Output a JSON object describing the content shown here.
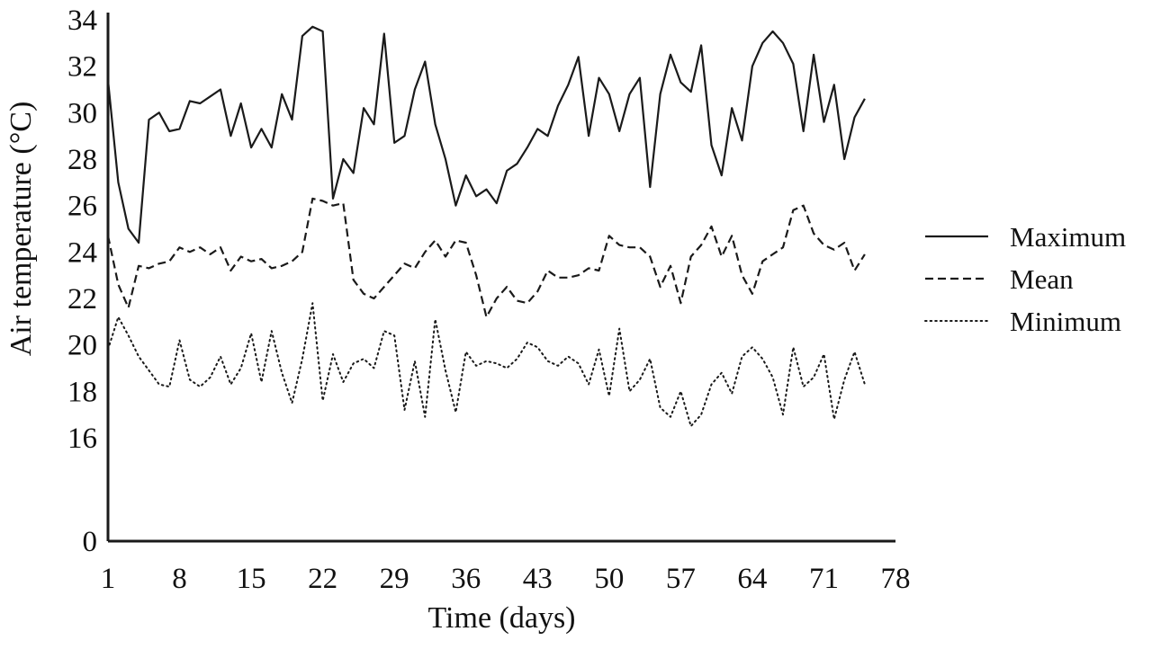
{
  "chart_data": {
    "type": "line",
    "title": "",
    "xlabel": "Time (days)",
    "ylabel": "Air temperature (°C)",
    "x_ticks": [
      1,
      8,
      15,
      22,
      29,
      36,
      43,
      50,
      57,
      64,
      71,
      78
    ],
    "y_ticks": [
      34,
      32,
      30,
      28,
      26,
      24,
      22,
      20,
      18,
      16
    ],
    "y_axis_break_label": "0",
    "x_range": [
      1,
      75
    ],
    "ylim": [
      16,
      34
    ],
    "grid": false,
    "background": "#ffffff",
    "line_color": "#1a1a1a",
    "axis_color": "#1a1a1a",
    "legend": {
      "position": "right"
    },
    "series": [
      {
        "name": "Maximum",
        "line_style": "solid",
        "values": [
          31.4,
          27.0,
          25.0,
          24.4,
          29.7,
          30.0,
          29.2,
          29.3,
          30.5,
          30.4,
          30.7,
          31.0,
          29.0,
          30.4,
          28.5,
          29.3,
          28.5,
          30.8,
          29.7,
          33.3,
          33.7,
          33.5,
          26.3,
          28.0,
          27.4,
          30.2,
          29.5,
          33.4,
          28.7,
          29.0,
          31.0,
          32.2,
          29.5,
          28.0,
          26.0,
          27.3,
          26.4,
          26.7,
          26.1,
          27.5,
          27.8,
          28.5,
          29.3,
          29.0,
          30.3,
          31.2,
          32.4,
          29.0,
          31.5,
          30.8,
          29.2,
          30.8,
          31.5,
          26.8,
          30.8,
          32.5,
          31.3,
          30.9,
          32.9,
          28.6,
          27.3,
          30.2,
          28.8,
          32.0,
          33.0,
          33.5,
          33.0,
          32.1,
          29.2,
          32.5,
          29.6,
          31.2,
          28.0,
          29.8,
          30.6
        ]
      },
      {
        "name": "Mean",
        "line_style": "dashed",
        "values": [
          24.7,
          22.6,
          21.6,
          23.4,
          23.3,
          23.5,
          23.6,
          24.2,
          24.0,
          24.2,
          23.9,
          24.2,
          23.2,
          23.8,
          23.6,
          23.7,
          23.3,
          23.4,
          23.6,
          24.0,
          26.3,
          26.2,
          26.0,
          26.1,
          22.8,
          22.2,
          22.0,
          22.5,
          23.0,
          23.5,
          23.3,
          24.0,
          24.5,
          23.8,
          24.5,
          24.4,
          23.0,
          21.2,
          22.0,
          22.5,
          21.9,
          21.8,
          22.3,
          23.2,
          22.9,
          22.9,
          23.0,
          23.3,
          23.2,
          24.7,
          24.3,
          24.2,
          24.2,
          23.8,
          22.5,
          23.4,
          21.8,
          23.8,
          24.3,
          25.1,
          23.8,
          24.7,
          23.0,
          22.2,
          23.6,
          23.9,
          24.2,
          25.8,
          26.0,
          24.8,
          24.3,
          24.1,
          24.4,
          23.2,
          23.9
        ]
      },
      {
        "name": "Minimum",
        "line_style": "dotted",
        "values": [
          19.8,
          21.2,
          20.4,
          19.5,
          18.9,
          18.3,
          18.2,
          20.2,
          18.5,
          18.2,
          18.6,
          19.5,
          18.3,
          19.0,
          20.5,
          18.4,
          20.6,
          18.8,
          17.5,
          19.4,
          21.8,
          17.6,
          19.6,
          18.4,
          19.2,
          19.4,
          19.0,
          20.6,
          20.4,
          17.2,
          19.3,
          16.9,
          21.1,
          18.9,
          17.1,
          19.7,
          19.1,
          19.3,
          19.2,
          19.0,
          19.4,
          20.1,
          19.9,
          19.3,
          19.1,
          19.5,
          19.2,
          18.3,
          19.8,
          17.8,
          20.7,
          18.0,
          18.5,
          19.4,
          17.3,
          16.9,
          18.0,
          16.5,
          17.0,
          18.3,
          18.8,
          17.9,
          19.5,
          19.9,
          19.4,
          18.6,
          17.0,
          19.9,
          18.2,
          18.6,
          19.6,
          16.8,
          18.5,
          19.7,
          18.3
        ]
      }
    ]
  }
}
